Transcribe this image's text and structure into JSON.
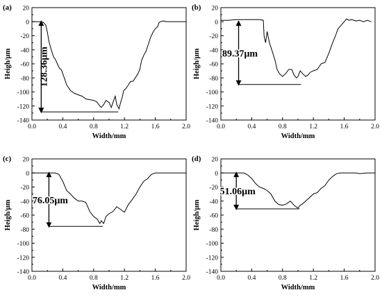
{
  "chart_data": [
    {
      "type": "line",
      "panel_label": "(a)",
      "xlabel": "Width/mm",
      "ylabel": "Heigh/μm",
      "xlim": [
        0.0,
        2.0
      ],
      "ylim": [
        -140,
        20
      ],
      "xticks": [
        "0.0",
        "0.4",
        "0.8",
        "1.2",
        "1.6",
        "2.0"
      ],
      "yticks": [
        "20",
        "0",
        "-20",
        "-40",
        "-60",
        "-80",
        "-100",
        "-120",
        "-140"
      ],
      "annotation": {
        "text": "128.36μm",
        "x": 0.12,
        "y_top": 0,
        "y_bottom": -128.36,
        "x_line_end": 1.12
      },
      "series": [
        {
          "x": [
            0.0,
            0.08,
            0.12,
            0.15,
            0.18,
            0.2,
            0.22,
            0.25,
            0.28,
            0.31,
            0.33,
            0.36,
            0.38,
            0.42,
            0.45,
            0.5,
            0.55,
            0.6,
            0.65,
            0.7,
            0.75,
            0.8,
            0.84,
            0.88,
            0.9,
            0.93,
            0.96,
            1.0,
            1.03,
            1.06,
            1.08,
            1.1,
            1.13,
            1.15,
            1.17,
            1.19,
            1.22,
            1.25,
            1.28,
            1.31,
            1.34,
            1.37,
            1.4,
            1.42,
            1.45,
            1.48,
            1.51,
            1.54,
            1.57,
            1.6,
            1.63,
            1.65,
            1.67,
            1.7,
            1.75,
            1.8,
            1.85,
            1.9,
            1.95,
            2.0
          ],
          "y": [
            0,
            0,
            0,
            -1,
            -5,
            -15,
            -28,
            -40,
            -50,
            -55,
            -60,
            -67,
            -68,
            -80,
            -90,
            -98,
            -102,
            -104,
            -106,
            -110,
            -111,
            -112,
            -114,
            -120,
            -122,
            -118,
            -112,
            -115,
            -122,
            -112,
            -106,
            -118,
            -124,
            -115,
            -108,
            -98,
            -95,
            -90,
            -85,
            -85,
            -80,
            -75,
            -68,
            -56,
            -48,
            -42,
            -32,
            -22,
            -15,
            -10,
            -7,
            -1,
            0,
            1,
            0,
            0,
            0,
            0,
            0,
            0
          ]
        }
      ]
    },
    {
      "type": "line",
      "panel_label": "(b)",
      "xlabel": "Width/mm",
      "ylabel": "Heigh/μm",
      "xlim": [
        0.0,
        2.0
      ],
      "ylim": [
        -140,
        20
      ],
      "xticks": [
        "0.0",
        "0.4",
        "0.8",
        "1.2",
        "1.6",
        "2.0"
      ],
      "yticks": [
        "20",
        "0",
        "-20",
        "-40",
        "-60",
        "-80",
        "-100",
        "-120",
        "-140"
      ],
      "annotation": {
        "text": "89.37μm",
        "x": 0.23,
        "y_top": 0,
        "y_bottom": -89.37,
        "x_line_end": 1.04
      },
      "series": [
        {
          "x": [
            0.0,
            0.1,
            0.2,
            0.3,
            0.4,
            0.5,
            0.55,
            0.56,
            0.58,
            0.6,
            0.63,
            0.66,
            0.7,
            0.73,
            0.76,
            0.8,
            0.84,
            0.88,
            0.92,
            0.95,
            0.98,
            1.0,
            1.03,
            1.06,
            1.1,
            1.13,
            1.16,
            1.2,
            1.25,
            1.3,
            1.35,
            1.4,
            1.45,
            1.48,
            1.52,
            1.56,
            1.6,
            1.63,
            1.66,
            1.7,
            1.75,
            1.8,
            1.85,
            1.9,
            1.95
          ],
          "y": [
            2,
            2,
            3,
            3,
            3,
            3,
            2,
            -20,
            -30,
            -14,
            -30,
            -40,
            -54,
            -68,
            -74,
            -78,
            -74,
            -68,
            -68,
            -76,
            -80,
            -78,
            -70,
            -74,
            -78,
            -76,
            -72,
            -70,
            -68,
            -60,
            -58,
            -45,
            -30,
            -22,
            -10,
            -5,
            0,
            4,
            2,
            3,
            1,
            2,
            0,
            2,
            0
          ]
        }
      ]
    },
    {
      "type": "line",
      "panel_label": "(c)",
      "xlabel": "Width/mm",
      "ylabel": "Heigh/μm",
      "xlim": [
        0.0,
        2.0
      ],
      "ylim": [
        -140,
        20
      ],
      "xticks": [
        "0.0",
        "0.4",
        "0.8",
        "1.2",
        "1.6",
        "2.0"
      ],
      "yticks": [
        "20",
        "0",
        "-20",
        "-40",
        "-60",
        "-80",
        "-100",
        "-120",
        "-140"
      ],
      "annotation": {
        "text": "76.05μm",
        "x": 0.22,
        "y_top": 0,
        "y_bottom": -76.05,
        "x_line_end": 0.92
      },
      "series": [
        {
          "x": [
            0.0,
            0.1,
            0.2,
            0.3,
            0.35,
            0.4,
            0.45,
            0.5,
            0.55,
            0.6,
            0.65,
            0.7,
            0.75,
            0.8,
            0.85,
            0.88,
            0.9,
            0.93,
            0.96,
            1.0,
            1.05,
            1.1,
            1.15,
            1.2,
            1.25,
            1.3,
            1.35,
            1.4,
            1.45,
            1.5,
            1.55,
            1.6,
            1.65,
            1.7,
            1.75,
            1.8,
            1.85,
            1.9,
            1.95,
            2.0
          ],
          "y": [
            0,
            0,
            0,
            0,
            -2,
            -12,
            -25,
            -30,
            -36,
            -40,
            -40,
            -42,
            -55,
            -62,
            -66,
            -72,
            -68,
            -72,
            -62,
            -58,
            -55,
            -48,
            -52,
            -56,
            -45,
            -38,
            -30,
            -20,
            -12,
            -8,
            -2,
            0,
            0,
            0,
            0,
            0,
            0,
            0,
            0,
            0
          ]
        }
      ]
    },
    {
      "type": "line",
      "panel_label": "(d)",
      "xlabel": "Width/mm",
      "ylabel": "Heigh/μm",
      "xlim": [
        0.0,
        2.0
      ],
      "ylim": [
        -140,
        20
      ],
      "xticks": [
        "0.0",
        "0.4",
        "0.8",
        "1.2",
        "1.6",
        "2.0"
      ],
      "yticks": [
        "20",
        "0",
        "-20",
        "-40",
        "-60",
        "-80",
        "-100",
        "-120",
        "-140"
      ],
      "annotation": {
        "text": "51.06μm",
        "x": 0.2,
        "y_top": 0,
        "y_bottom": -51.06,
        "x_line_end": 1.02
      },
      "series": [
        {
          "x": [
            0.0,
            0.1,
            0.2,
            0.3,
            0.35,
            0.4,
            0.45,
            0.5,
            0.55,
            0.6,
            0.65,
            0.7,
            0.75,
            0.8,
            0.85,
            0.9,
            0.95,
            1.0,
            1.03,
            1.06,
            1.1,
            1.15,
            1.2,
            1.25,
            1.3,
            1.35,
            1.4,
            1.45,
            1.5,
            1.55,
            1.6,
            1.65,
            1.7,
            1.75,
            1.8,
            1.9,
            2.0
          ],
          "y": [
            0,
            0,
            0,
            0,
            -3,
            -8,
            -15,
            -20,
            -22,
            -25,
            -30,
            -40,
            -45,
            -46,
            -44,
            -40,
            -46,
            -50,
            -46,
            -44,
            -40,
            -35,
            -30,
            -28,
            -22,
            -18,
            -10,
            -5,
            -1,
            0,
            0,
            0,
            0,
            0,
            -1,
            0,
            0
          ]
        }
      ]
    }
  ]
}
